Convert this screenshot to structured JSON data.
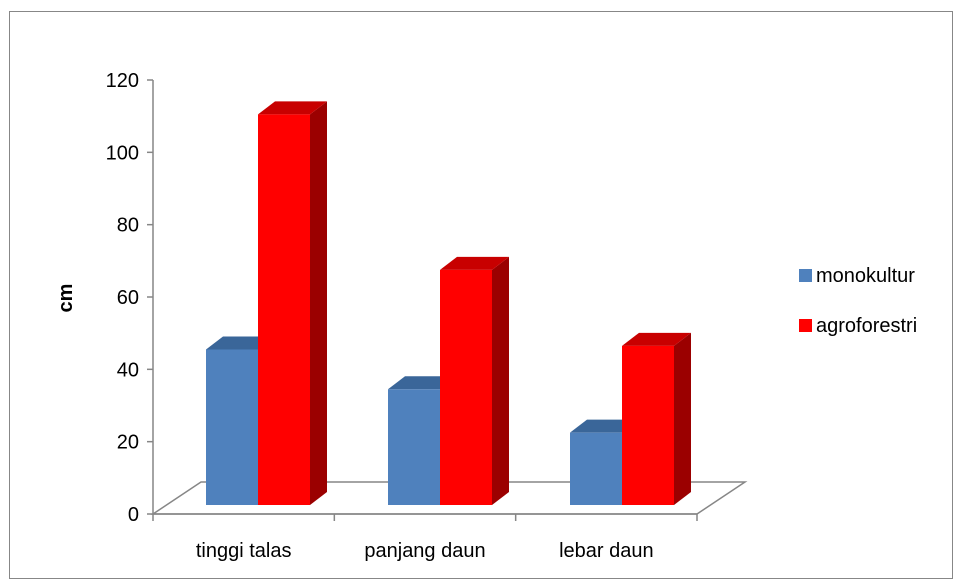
{
  "chart_data": {
    "type": "bar",
    "title": "",
    "xlabel": "",
    "ylabel": "cm",
    "ylim": [
      0,
      120
    ],
    "yticks": [
      0,
      20,
      40,
      60,
      80,
      100,
      120
    ],
    "categories": [
      "tinggi talas",
      "panjang daun",
      "lebar daun"
    ],
    "series": [
      {
        "name": "monokultur",
        "values": [
          43,
          32,
          20
        ],
        "color": "#4F81BD",
        "side_color": "#2E5485",
        "top_color": "#3A6699"
      },
      {
        "name": "agroforestri",
        "values": [
          108,
          65,
          44
        ],
        "color": "#FF0000",
        "side_color": "#9B0000",
        "top_color": "#C80000"
      }
    ],
    "grid": false,
    "legend_position": "right",
    "style": "3d-clustered-column"
  }
}
